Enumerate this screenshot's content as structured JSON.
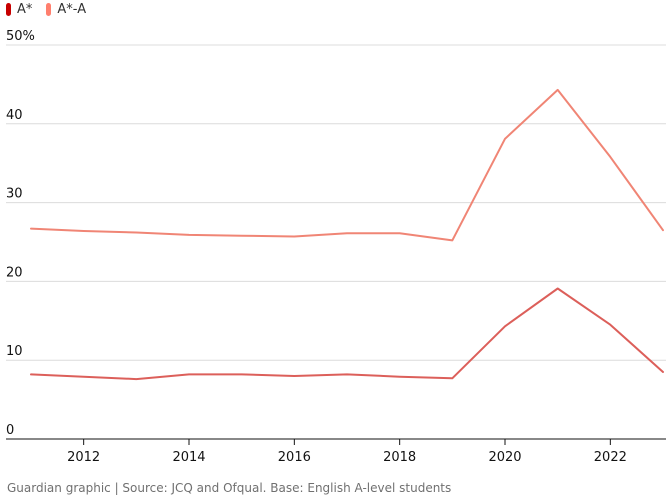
{
  "legend": {
    "items": [
      {
        "label": "A*",
        "color": "#c70000"
      },
      {
        "label": "A*-A",
        "color": "#ff7f6e"
      }
    ]
  },
  "source": "Guardian graphic | Source: JCQ and Ofqual. Base: English A-level students",
  "chart_data": {
    "type": "line",
    "title": "",
    "xlabel": "",
    "ylabel": "",
    "xlim": [
      2011,
      2023
    ],
    "ylim": [
      0,
      50
    ],
    "y_ticks": [
      {
        "value": 0,
        "label": "0"
      },
      {
        "value": 10,
        "label": "10"
      },
      {
        "value": 20,
        "label": "20"
      },
      {
        "value": 30,
        "label": "30"
      },
      {
        "value": 40,
        "label": "40"
      },
      {
        "value": 50,
        "label": "50%"
      }
    ],
    "x_ticks": [
      {
        "value": 2012,
        "label": "2012"
      },
      {
        "value": 2014,
        "label": "2014"
      },
      {
        "value": 2016,
        "label": "2016"
      },
      {
        "value": 2018,
        "label": "2018"
      },
      {
        "value": 2020,
        "label": "2020"
      },
      {
        "value": 2022,
        "label": "2022"
      }
    ],
    "grid": "horizontal",
    "legend_position": "top-left",
    "x": [
      2011,
      2012,
      2013,
      2014,
      2015,
      2016,
      2017,
      2018,
      2019,
      2020,
      2021,
      2022,
      2023
    ],
    "series": [
      {
        "name": "A*-A",
        "color": "#f08575",
        "values": [
          26.7,
          26.4,
          26.2,
          25.9,
          25.8,
          25.7,
          26.1,
          26.1,
          25.2,
          38.1,
          44.3,
          35.8,
          26.5
        ]
      },
      {
        "name": "A*",
        "color": "#dc5f5a",
        "values": [
          8.2,
          7.9,
          7.6,
          8.2,
          8.2,
          8.0,
          8.2,
          7.9,
          7.7,
          14.3,
          19.1,
          14.5,
          8.5
        ]
      }
    ]
  }
}
